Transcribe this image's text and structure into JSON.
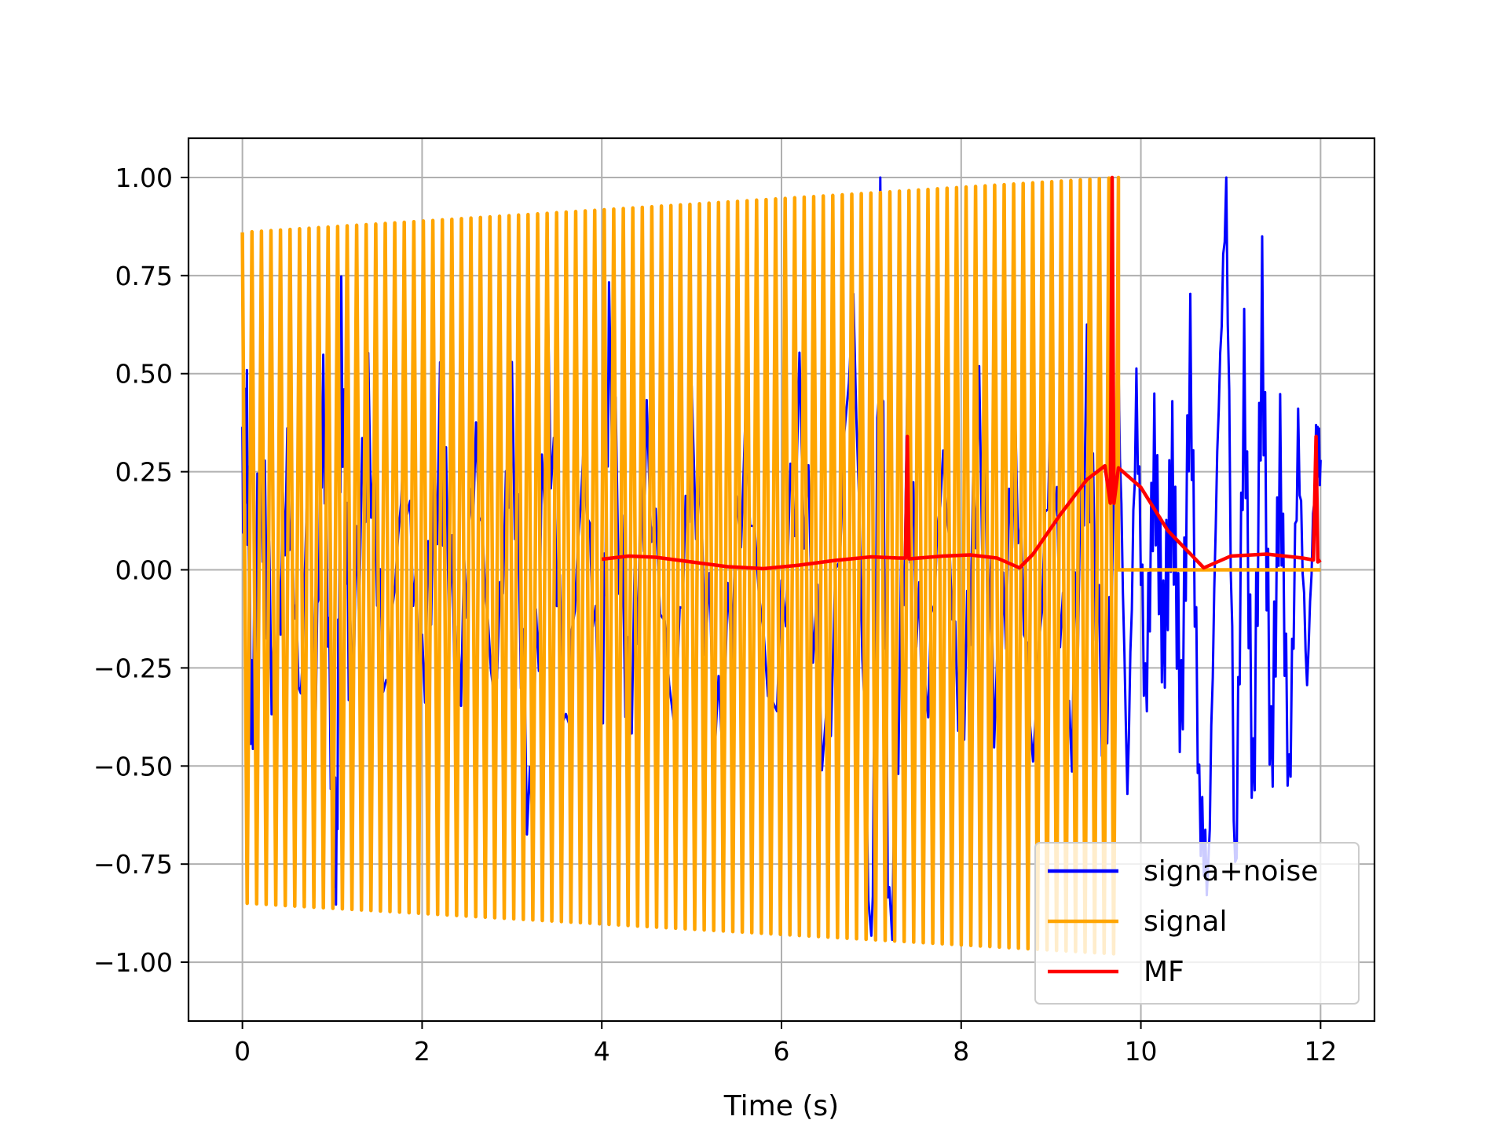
{
  "chart_data": {
    "type": "line",
    "title": "",
    "xlabel": "Time (s)",
    "ylabel": "",
    "xlim": [
      -0.6,
      12.6
    ],
    "ylim": [
      -1.15,
      1.1
    ],
    "x_ticks": [
      0,
      2,
      4,
      6,
      8,
      10,
      12
    ],
    "x_tick_labels": [
      "0",
      "2",
      "4",
      "6",
      "8",
      "10",
      "12"
    ],
    "y_ticks": [
      1.0,
      0.75,
      0.5,
      0.25,
      0.0,
      -0.25,
      -0.5,
      -0.75,
      -1.0
    ],
    "y_tick_labels": [
      "1.00",
      "0.75",
      "0.50",
      "0.25",
      "0.00",
      "−0.25",
      "−0.50",
      "−0.75",
      "−1.00"
    ],
    "grid": true,
    "legend_position": "lower-right",
    "series": [
      {
        "name": "signa+noise",
        "color": "#0000ff",
        "description_points": [
          [
            0.0,
            0.22
          ],
          [
            0.05,
            0.35
          ],
          [
            0.1,
            -0.4
          ],
          [
            0.2,
            0.3
          ],
          [
            0.35,
            -0.3
          ],
          [
            0.5,
            0.25
          ],
          [
            0.65,
            -0.35
          ],
          [
            0.75,
            0.42
          ],
          [
            0.8,
            -0.45
          ],
          [
            0.9,
            0.45
          ],
          [
            1.0,
            -0.6
          ],
          [
            1.05,
            -0.72
          ],
          [
            1.1,
            0.58
          ],
          [
            1.2,
            -0.3
          ],
          [
            1.4,
            0.4
          ],
          [
            1.6,
            -0.35
          ],
          [
            1.8,
            0.3
          ],
          [
            2.0,
            -0.3
          ],
          [
            2.2,
            0.35
          ],
          [
            2.4,
            -0.3
          ],
          [
            2.6,
            0.3
          ],
          [
            2.8,
            -0.35
          ],
          [
            3.0,
            0.4
          ],
          [
            3.2,
            -0.68
          ],
          [
            3.4,
            0.52
          ],
          [
            3.6,
            -0.45
          ],
          [
            3.8,
            0.3
          ],
          [
            4.0,
            -0.43
          ],
          [
            4.08,
            0.58
          ],
          [
            4.3,
            -0.35
          ],
          [
            4.5,
            0.3
          ],
          [
            4.8,
            -0.4
          ],
          [
            5.0,
            0.35
          ],
          [
            5.3,
            -0.45
          ],
          [
            5.6,
            0.3
          ],
          [
            5.9,
            -0.4
          ],
          [
            6.2,
            0.38
          ],
          [
            6.5,
            -0.5
          ],
          [
            6.8,
            0.7
          ],
          [
            7.0,
            -1.04
          ],
          [
            7.1,
            0.9
          ],
          [
            7.2,
            -0.98
          ],
          [
            7.4,
            0.3
          ],
          [
            7.6,
            -0.4
          ],
          [
            7.8,
            0.3
          ],
          [
            8.0,
            -0.45
          ],
          [
            8.2,
            0.35
          ],
          [
            8.4,
            -0.4
          ],
          [
            8.6,
            0.3
          ],
          [
            8.8,
            -0.5
          ],
          [
            9.0,
            0.38
          ],
          [
            9.2,
            -0.5
          ],
          [
            9.4,
            0.45
          ],
          [
            9.6,
            -0.5
          ],
          [
            9.75,
            0.5
          ],
          [
            9.85,
            -0.58
          ],
          [
            9.95,
            0.45
          ],
          [
            10.05,
            -0.35
          ],
          [
            10.15,
            0.3
          ],
          [
            10.25,
            -0.2
          ],
          [
            10.35,
            0.25
          ],
          [
            10.45,
            -0.4
          ],
          [
            10.55,
            0.56
          ],
          [
            10.65,
            -0.6
          ],
          [
            10.75,
            -0.8
          ],
          [
            10.85,
            0.3
          ],
          [
            10.95,
            1.0
          ],
          [
            11.05,
            -0.85
          ],
          [
            11.15,
            0.52
          ],
          [
            11.25,
            -0.6
          ],
          [
            11.35,
            0.67
          ],
          [
            11.45,
            -0.52
          ],
          [
            11.55,
            0.3
          ],
          [
            11.65,
            -0.58
          ],
          [
            11.75,
            0.35
          ],
          [
            11.85,
            -0.3
          ],
          [
            11.95,
            0.32
          ],
          [
            12.0,
            0.28
          ]
        ]
      },
      {
        "name": "signal",
        "color": "#ffa500",
        "start_x": 0.0,
        "end_x": 9.75,
        "amplitude_start": 0.86,
        "amplitude_end": 1.0,
        "amplitude_neg_start": -0.85,
        "amplitude_neg_end": -0.98,
        "cycles": 92,
        "flat_after": [
          [
            9.75,
            0.0
          ],
          [
            12.0,
            0.0
          ]
        ]
      },
      {
        "name": "MF",
        "color": "#ff0000",
        "points": [
          [
            4.0,
            0.027
          ],
          [
            4.3,
            0.035
          ],
          [
            4.6,
            0.032
          ],
          [
            5.0,
            0.02
          ],
          [
            5.4,
            0.008
          ],
          [
            5.8,
            0.003
          ],
          [
            6.2,
            0.012
          ],
          [
            6.6,
            0.024
          ],
          [
            7.0,
            0.033
          ],
          [
            7.3,
            0.03
          ],
          [
            7.38,
            0.03
          ],
          [
            7.4,
            0.34
          ],
          [
            7.42,
            0.028
          ],
          [
            7.8,
            0.035
          ],
          [
            8.1,
            0.038
          ],
          [
            8.4,
            0.03
          ],
          [
            8.65,
            0.005
          ],
          [
            8.8,
            0.04
          ],
          [
            9.1,
            0.14
          ],
          [
            9.4,
            0.23
          ],
          [
            9.6,
            0.265
          ],
          [
            9.66,
            0.17
          ],
          [
            9.68,
            1.0
          ],
          [
            9.7,
            0.17
          ],
          [
            9.75,
            0.26
          ],
          [
            10.0,
            0.21
          ],
          [
            10.3,
            0.1
          ],
          [
            10.7,
            0.005
          ],
          [
            11.0,
            0.035
          ],
          [
            11.4,
            0.04
          ],
          [
            11.8,
            0.03
          ],
          [
            11.92,
            0.025
          ],
          [
            11.95,
            0.34
          ],
          [
            11.97,
            0.02
          ],
          [
            12.0,
            0.025
          ]
        ]
      }
    ]
  }
}
